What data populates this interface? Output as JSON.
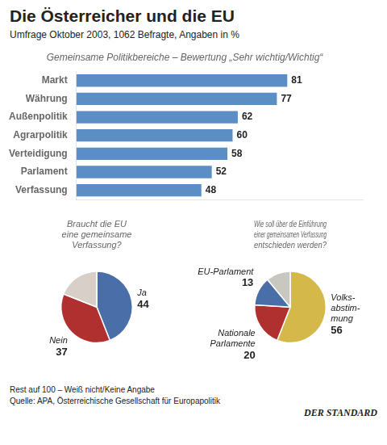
{
  "title": "Die Österreicher und die EU",
  "subtitle": "Umfrage Oktober 2003, 1062 Befragte, Angaben in %",
  "annotations": [
    "Rest auf 100 – Weiß nicht/Keine Angabe",
    "Quelle: APA, Österreichische Gesellschaft für Europapolitik",
    "DER STANDARD"
  ],
  "chart_data": [
    {
      "type": "bar",
      "orientation": "horizontal",
      "title": "Gemeinsame Politikbereiche – Bewertung „Sehr wichtig/Wichtig“",
      "categories": [
        "Markt",
        "Währung",
        "Außenpolitik",
        "Agrarpolitik",
        "Verteidigung",
        "Parlament",
        "Verfassung"
      ],
      "values": [
        81,
        77,
        62,
        60,
        58,
        52,
        48
      ],
      "color": "#5b8ec4",
      "xlim": [
        0,
        110
      ],
      "grid": false,
      "tick_labels": "y",
      "data_labels": true
    },
    {
      "type": "pie",
      "title": "Braucht die EU\neine gemeinsame\nVerfassung?",
      "categories": [
        "Ja",
        "Nein",
        null
      ],
      "values": [
        44,
        37,
        19
      ],
      "value_labels": [
        "44",
        "37",
        null
      ],
      "colors": [
        "#4a6fa8",
        "#b03030",
        "#d8d0c8"
      ],
      "data_labels": true
    },
    {
      "type": "pie",
      "title": "Wie soll über die Einführung\neiner gemeinsamen Verfassung\nentschieden werden?",
      "categories": [
        "Volks-\nabstim-\nmung",
        "Nationale\nParlamente",
        "EU-Parlament",
        null
      ],
      "values": [
        56,
        20,
        13,
        11
      ],
      "value_labels": [
        "56",
        "20",
        "13",
        null
      ],
      "colors": [
        "#d4b84a",
        "#b03030",
        "#4a6fa8",
        "#c8c8c0"
      ],
      "data_labels": true
    }
  ]
}
